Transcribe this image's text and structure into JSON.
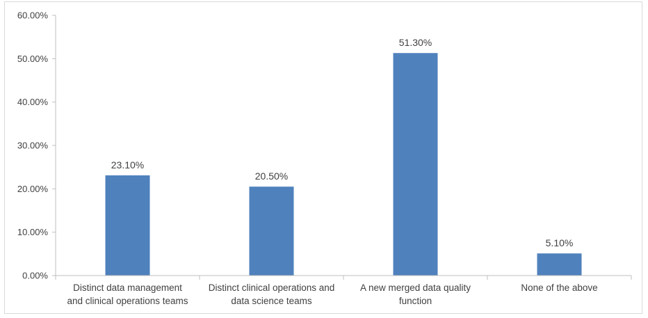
{
  "chart_data": {
    "type": "bar",
    "title": "",
    "xlabel": "",
    "ylabel": "",
    "categories": [
      [
        "Distinct data management",
        "and clinical operations teams"
      ],
      [
        "Distinct clinical operations and",
        "data science teams"
      ],
      [
        "A new merged data quality",
        "function"
      ],
      [
        "None of the above"
      ]
    ],
    "values": [
      23.1,
      20.5,
      51.3,
      5.1
    ],
    "data_labels": [
      "23.10%",
      "20.50%",
      "51.30%",
      "5.10%"
    ],
    "ylim": [
      0,
      60
    ],
    "yticks": [
      0,
      10,
      20,
      30,
      40,
      50,
      60
    ],
    "ytick_labels": [
      "0.00%",
      "10.00%",
      "20.00%",
      "30.00%",
      "40.00%",
      "50.00%",
      "60.00%"
    ],
    "grid": false,
    "legend": "none",
    "colors": {
      "bar": "#4f81bd",
      "axis": "#bfbfbf",
      "text": "#404040"
    }
  }
}
